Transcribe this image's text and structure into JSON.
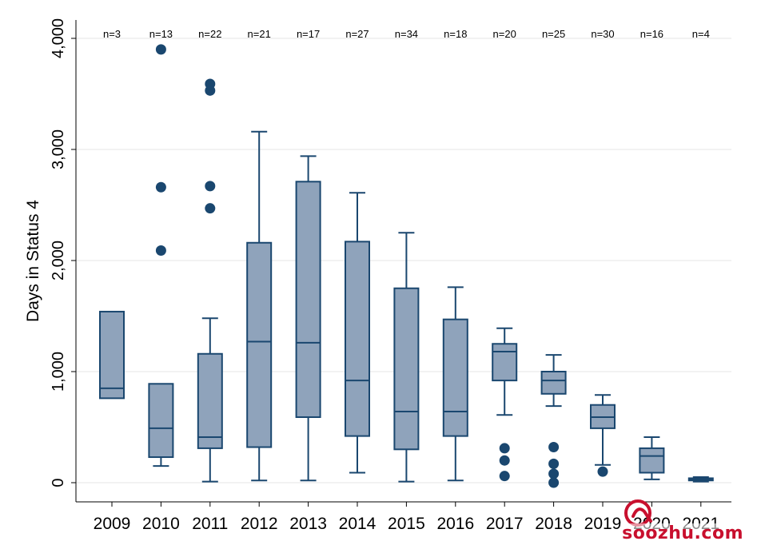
{
  "chart_data": {
    "type": "boxplot",
    "title": "",
    "xlabel": "",
    "ylabel": "Days in Status 4",
    "ylim": [
      0,
      4000
    ],
    "yticks": [
      {
        "value": 0,
        "label": "0"
      },
      {
        "value": 1000,
        "label": "1,000"
      },
      {
        "value": 2000,
        "label": "2,000"
      },
      {
        "value": 3000,
        "label": "3,000"
      },
      {
        "value": 4000,
        "label": "4,000"
      }
    ],
    "grid": true,
    "categories": [
      "2009",
      "2010",
      "2011",
      "2012",
      "2013",
      "2014",
      "2015",
      "2016",
      "2017",
      "2018",
      "2019",
      "2020",
      "2021"
    ],
    "counts": [
      "n=3",
      "n=13",
      "n=22",
      "n=21",
      "n=17",
      "n=27",
      "n=34",
      "n=18",
      "n=20",
      "n=25",
      "n=30",
      "n=16",
      "n=4"
    ],
    "boxes": [
      {
        "q1": 760,
        "median": 850,
        "q3": 1540,
        "whisker_low": null,
        "whisker_high": null,
        "outliers": []
      },
      {
        "q1": 230,
        "median": 490,
        "q3": 890,
        "whisker_low": 150,
        "whisker_high": null,
        "outliers": [
          2090,
          2660,
          3900
        ]
      },
      {
        "q1": 310,
        "median": 410,
        "q3": 1160,
        "whisker_low": 10,
        "whisker_high": 1480,
        "outliers": [
          2470,
          2670,
          3530,
          3590
        ]
      },
      {
        "q1": 320,
        "median": 1270,
        "q3": 2160,
        "whisker_low": 20,
        "whisker_high": 3160,
        "outliers": []
      },
      {
        "q1": 590,
        "median": 1260,
        "q3": 2710,
        "whisker_low": 20,
        "whisker_high": 2940,
        "outliers": []
      },
      {
        "q1": 420,
        "median": 920,
        "q3": 2170,
        "whisker_low": 90,
        "whisker_high": 2610,
        "outliers": []
      },
      {
        "q1": 300,
        "median": 640,
        "q3": 1750,
        "whisker_low": 10,
        "whisker_high": 2250,
        "outliers": []
      },
      {
        "q1": 420,
        "median": 640,
        "q3": 1470,
        "whisker_low": 20,
        "whisker_high": 1760,
        "outliers": []
      },
      {
        "q1": 920,
        "median": 1180,
        "q3": 1250,
        "whisker_low": 610,
        "whisker_high": 1390,
        "outliers": [
          60,
          200,
          310
        ]
      },
      {
        "q1": 800,
        "median": 920,
        "q3": 1000,
        "whisker_low": 690,
        "whisker_high": 1150,
        "outliers": [
          0,
          80,
          170,
          320
        ]
      },
      {
        "q1": 490,
        "median": 590,
        "q3": 700,
        "whisker_low": 160,
        "whisker_high": 790,
        "outliers": [
          100
        ]
      },
      {
        "q1": 90,
        "median": 240,
        "q3": 310,
        "whisker_low": 30,
        "whisker_high": 410,
        "outliers": []
      },
      {
        "q1": 20,
        "median": 30,
        "q3": 40,
        "whisker_low": 10,
        "whisker_high": 50,
        "outliers": []
      }
    ],
    "colors": {
      "box_fill": "#8fa3bb",
      "stroke": "#1a476f",
      "outlier": "#1a476f",
      "grid": "#e6e6e6",
      "axis": "#000000"
    }
  },
  "watermark": {
    "logo_text": "搜铸",
    "site": "soozhu.com",
    "color": "#c8102e"
  }
}
